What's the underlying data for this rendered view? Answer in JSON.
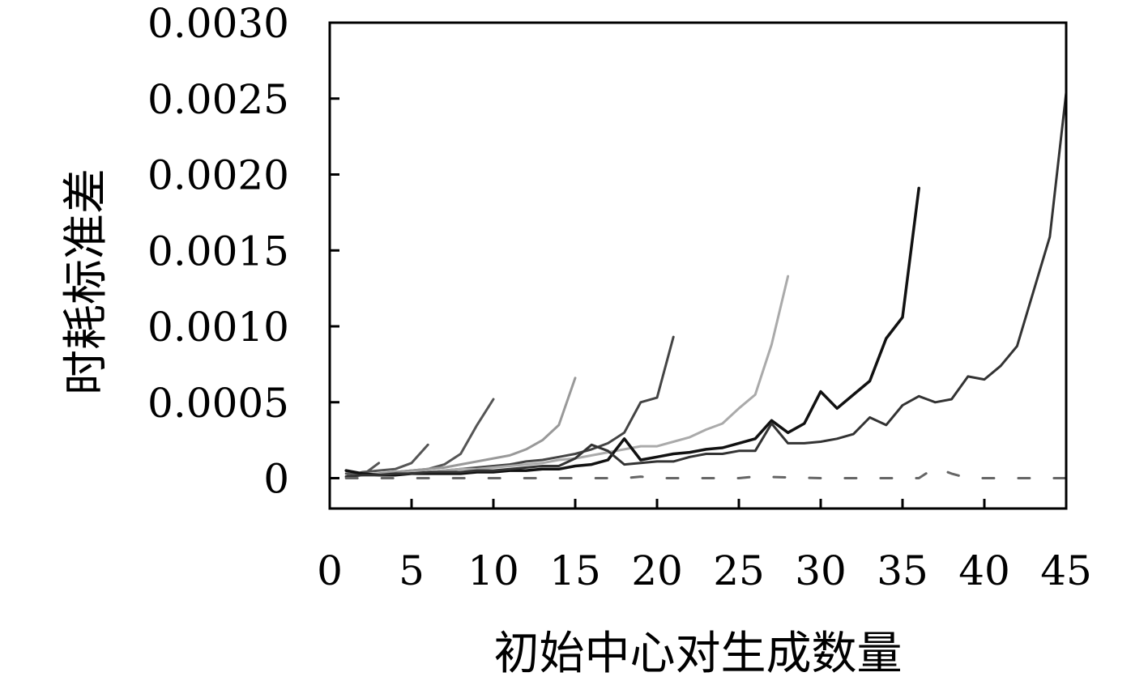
{
  "chart_data": {
    "type": "line",
    "xlabel": "初始中心对生成数量",
    "ylabel": "时耗标准差",
    "xlim": [
      0,
      45
    ],
    "ylim": [
      -0.0002,
      0.003
    ],
    "xticks": [
      "0",
      "5",
      "10",
      "15",
      "20",
      "25",
      "30",
      "35",
      "40",
      "45"
    ],
    "xtick_values": [
      0,
      5,
      10,
      15,
      20,
      25,
      30,
      35,
      40,
      45
    ],
    "yticks": [
      "0",
      "0.0005",
      "0.0010",
      "0.0015",
      "0.0020",
      "0.0025",
      "0.0030"
    ],
    "ytick_values": [
      0,
      0.0005,
      0.001,
      0.0015,
      0.002,
      0.0025,
      0.003
    ],
    "grid": false,
    "series": [
      {
        "color": "#555555",
        "width": 3,
        "dash": "",
        "x": [
          1,
          2,
          3
        ],
        "y": [
          3e-05,
          2e-05,
          0.0001
        ]
      },
      {
        "color": "#555555",
        "width": 3,
        "dash": "",
        "x": [
          1,
          2,
          3,
          4,
          5,
          6
        ],
        "y": [
          1e-05,
          4e-05,
          5e-05,
          6e-05,
          0.0001,
          0.00022
        ]
      },
      {
        "color": "#555555",
        "width": 3,
        "dash": "",
        "x": [
          1,
          2,
          3,
          4,
          5,
          6,
          7,
          8,
          9,
          10
        ],
        "y": [
          1e-05,
          2e-05,
          3e-05,
          4e-05,
          5e-05,
          6e-05,
          9e-05,
          0.00016,
          0.00035,
          0.00052
        ]
      },
      {
        "color": "#999999",
        "width": 3,
        "dash": "",
        "x": [
          1,
          2,
          3,
          4,
          5,
          6,
          7,
          8,
          9,
          10,
          11,
          12,
          13,
          14,
          15
        ],
        "y": [
          1e-05,
          2e-05,
          3e-05,
          4e-05,
          5e-05,
          6e-05,
          7e-05,
          9e-05,
          0.00011,
          0.00013,
          0.00015,
          0.00019,
          0.00025,
          0.00035,
          0.00066
        ]
      },
      {
        "color": "#444444",
        "width": 3,
        "dash": "",
        "x": [
          1,
          2,
          3,
          4,
          5,
          6,
          7,
          8,
          9,
          10,
          11,
          12,
          13,
          14,
          15,
          16,
          17,
          18,
          19,
          20,
          21
        ],
        "y": [
          1e-05,
          2e-05,
          2e-05,
          3e-05,
          4e-05,
          4e-05,
          5e-05,
          6e-05,
          7e-05,
          8e-05,
          9e-05,
          0.00011,
          0.00012,
          0.00014,
          0.00016,
          0.00019,
          0.00023,
          0.0003,
          0.0005,
          0.00053,
          0.00093
        ]
      },
      {
        "color": "#aaaaaa",
        "width": 3,
        "dash": "",
        "x": [
          1,
          2,
          3,
          4,
          5,
          6,
          7,
          8,
          9,
          10,
          11,
          12,
          13,
          14,
          15,
          16,
          17,
          18,
          19,
          20,
          21,
          22,
          23,
          24,
          25,
          26,
          27,
          28
        ],
        "y": [
          1e-05,
          2e-05,
          2e-05,
          3e-05,
          4e-05,
          4e-05,
          5e-05,
          6e-05,
          6e-05,
          7e-05,
          8e-05,
          9e-05,
          0.0001,
          0.00012,
          0.00013,
          0.00015,
          0.00017,
          0.00019,
          0.00021,
          0.00021,
          0.00024,
          0.00027,
          0.00032,
          0.00036,
          0.00046,
          0.00055,
          0.00088,
          0.00133
        ]
      },
      {
        "color": "#111111",
        "width": 3.5,
        "dash": "",
        "x": [
          1,
          2,
          3,
          4,
          5,
          6,
          7,
          8,
          9,
          10,
          11,
          12,
          13,
          14,
          15,
          16,
          17,
          18,
          19,
          20,
          21,
          22,
          23,
          24,
          25,
          26,
          27,
          28,
          29,
          30,
          31,
          32,
          33,
          34,
          35,
          36
        ],
        "y": [
          5e-05,
          3e-05,
          2e-05,
          2e-05,
          3e-05,
          3e-05,
          3e-05,
          3e-05,
          4e-05,
          4e-05,
          5e-05,
          5e-05,
          6e-05,
          6e-05,
          8e-05,
          9e-05,
          0.00012,
          0.00026,
          0.00012,
          0.00014,
          0.00016,
          0.00017,
          0.00019,
          0.0002,
          0.00023,
          0.00026,
          0.00038,
          0.0003,
          0.00036,
          0.00057,
          0.00046,
          0.00055,
          0.00064,
          0.00092,
          0.00106,
          0.00191
        ]
      },
      {
        "color": "#333333",
        "width": 3,
        "dash": "",
        "x": [
          1,
          2,
          3,
          4,
          5,
          6,
          7,
          8,
          9,
          10,
          11,
          12,
          13,
          14,
          15,
          16,
          17,
          18,
          19,
          20,
          21,
          22,
          23,
          24,
          25,
          26,
          27,
          28,
          29,
          30,
          31,
          32,
          33,
          34,
          35,
          36,
          37,
          38,
          39,
          40,
          41,
          42,
          43,
          44,
          45
        ],
        "y": [
          1e-05,
          2e-05,
          2e-05,
          3e-05,
          3e-05,
          4e-05,
          4e-05,
          4e-05,
          5e-05,
          5e-05,
          6e-05,
          7e-05,
          8e-05,
          8e-05,
          0.00013,
          0.00022,
          0.00018,
          9e-05,
          0.0001,
          0.00011,
          0.00011,
          0.00014,
          0.00016,
          0.00016,
          0.00018,
          0.00018,
          0.00036,
          0.00023,
          0.00023,
          0.00024,
          0.00026,
          0.00029,
          0.0004,
          0.00035,
          0.00048,
          0.00054,
          0.0005,
          0.00052,
          0.00067,
          0.00065,
          0.00074,
          0.00087,
          0.00123,
          0.00159,
          0.00254
        ]
      },
      {
        "color": "#666666",
        "width": 3,
        "dash": "14,30",
        "x": [
          1,
          10,
          18,
          19,
          20,
          25,
          26,
          30,
          35,
          36,
          37,
          38,
          39,
          42,
          45
        ],
        "y": [
          0,
          0,
          0,
          1e-05,
          0,
          0,
          1e-05,
          0,
          0,
          0,
          7e-05,
          3e-05,
          0,
          0,
          0
        ]
      }
    ]
  }
}
